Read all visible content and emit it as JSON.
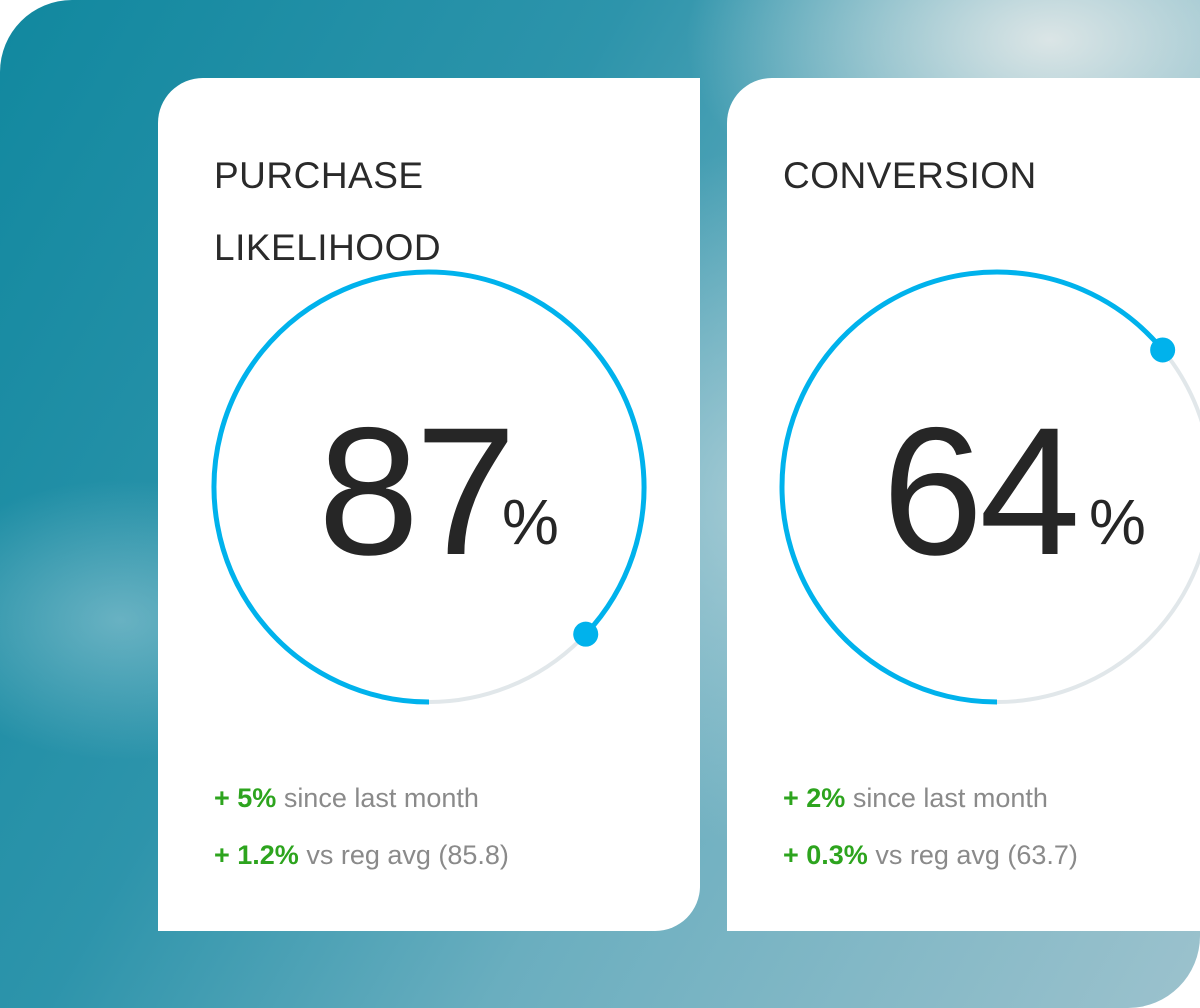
{
  "colors": {
    "accent": "#00b2ec",
    "track": "#e1e7ea",
    "positive": "#2da41e"
  },
  "cards": [
    {
      "title": "PURCHASE LIKELIHOOD",
      "value": "87",
      "unit": "%",
      "progress": 0.87,
      "stats": [
        {
          "delta": "+ 5%",
          "text": "since last month"
        },
        {
          "delta": "+ 1.2%",
          "text": "vs reg avg (85.8)"
        }
      ]
    },
    {
      "title": "CONVERSION",
      "value": "64",
      "unit": "%",
      "progress": 0.64,
      "stats": [
        {
          "delta": "+ 2%",
          "text": "since last month"
        },
        {
          "delta": "+ 0.3%",
          "text": "vs reg avg (63.7)"
        }
      ]
    }
  ]
}
